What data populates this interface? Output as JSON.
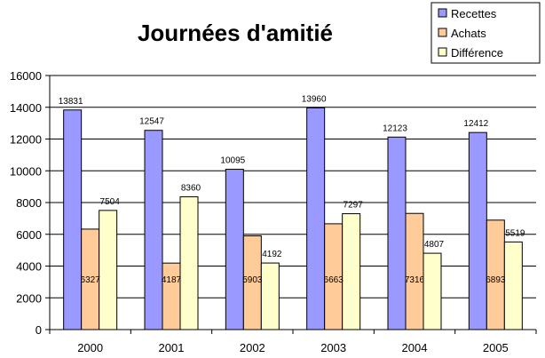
{
  "chart_data": {
    "type": "bar",
    "title": "Journées d'amitié",
    "categories": [
      "2000",
      "2001",
      "2002",
      "2003",
      "2004",
      "2005"
    ],
    "series": [
      {
        "name": "Recettes",
        "color": "#9999FF",
        "values": [
          13831,
          12547,
          10095,
          13960,
          12123,
          12412
        ]
      },
      {
        "name": "Achats",
        "color": "#FFCC99",
        "values": [
          6327,
          4187,
          5903,
          6663,
          7316,
          6893
        ]
      },
      {
        "name": "Différence",
        "color": "#FFFFCC",
        "values": [
          7504,
          8360,
          4192,
          7297,
          4807,
          5519
        ]
      }
    ],
    "ylim": [
      0,
      16000
    ],
    "yticks": [
      0,
      2000,
      4000,
      6000,
      8000,
      10000,
      12000,
      14000,
      16000
    ],
    "grid": true,
    "legend_position": "top-right",
    "xlabel": "",
    "ylabel": ""
  }
}
